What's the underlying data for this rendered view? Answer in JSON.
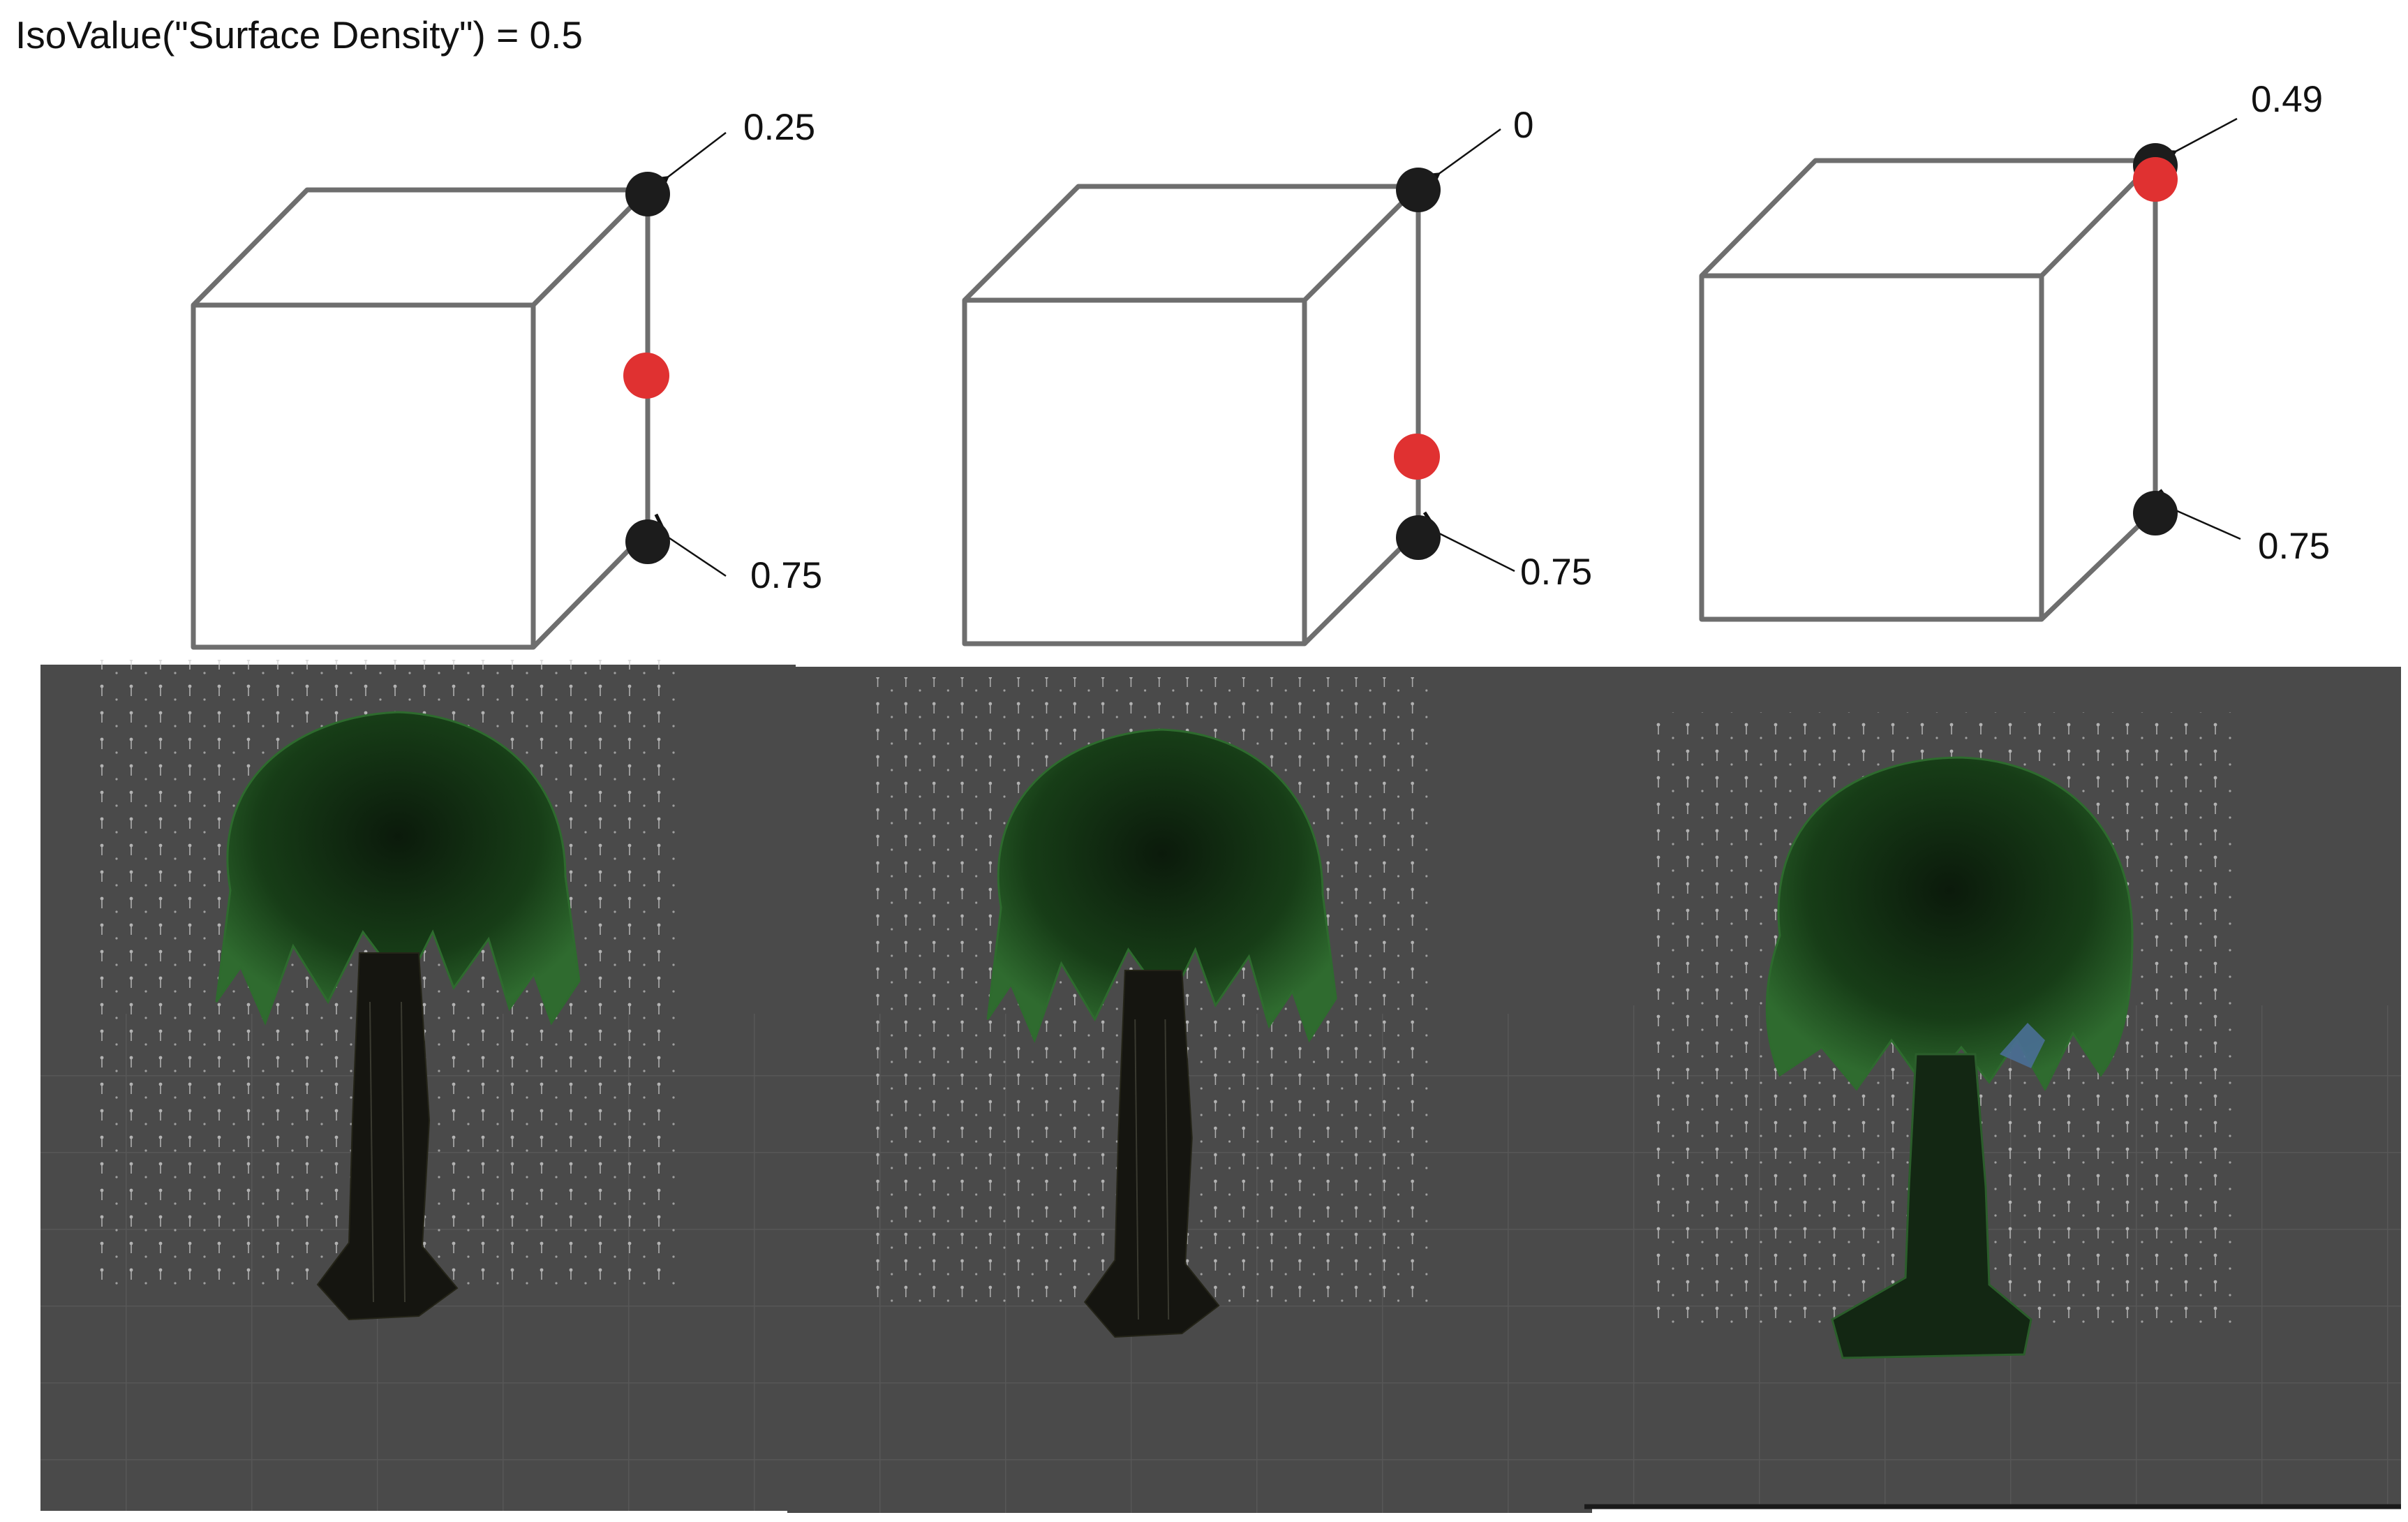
{
  "heading": "IsoValue(\"Surface Density\") = 0.5",
  "cubes": [
    {
      "top_value": "0.25",
      "bottom_value": "0.75"
    },
    {
      "top_value": "0",
      "bottom_value": "0.75"
    },
    {
      "top_value": "0.49",
      "bottom_value": "0.75"
    }
  ],
  "colors": {
    "cube_edge": "#6e6e6e",
    "corner_point": "#1c1c1c",
    "interpolated_point": "#e03131",
    "viewport_bg": "#4a4a4a",
    "grid_points": "#d8d8d8",
    "foliage": "#1f4d1f",
    "trunk": "#151510"
  }
}
